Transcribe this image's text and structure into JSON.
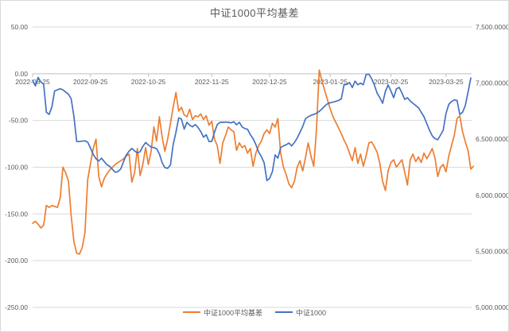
{
  "chart_data": {
    "type": "line",
    "title": "中证1000平均基差",
    "legend_position": "bottom",
    "grid": true,
    "n_points": 160,
    "x_tick_labels": [
      "2022-08-25",
      "2022-09-25",
      "2022-10-25",
      "2022-11-25",
      "2022-12-25",
      "2023-01-25",
      "2023-02-25",
      "2023-03-25"
    ],
    "x_tick_day_index": [
      0,
      21,
      42,
      65,
      86,
      108,
      130,
      150
    ],
    "left_axis": {
      "min": -250,
      "max": 50,
      "step": 50,
      "tick_values": [
        50,
        0,
        -50,
        -100,
        -150,
        -200,
        -250
      ],
      "tick_labels": [
        "50.00",
        "0.00",
        "-50.00",
        "-100.00",
        "-150.00",
        "-200.00",
        "-250.00"
      ]
    },
    "right_axis": {
      "min": 5000,
      "max": 7500,
      "step": 500,
      "tick_values": [
        7500,
        7000,
        6500,
        6000,
        5500,
        5000
      ],
      "tick_labels": [
        "7,500.0000",
        "7,000.0000",
        "6,500.0000",
        "6,000.0000",
        "5,500.0000",
        "5,000.0000"
      ]
    },
    "series": [
      {
        "name": "中证1000平均基差",
        "axis": "left",
        "color": "#ED7D31",
        "values": [
          -160,
          -158,
          -161,
          -165,
          -162,
          -141,
          -143,
          -141,
          -142,
          -143,
          -133,
          -100,
          -106,
          -115,
          -152,
          -180,
          -192,
          -193,
          -186,
          -170,
          -113,
          -96,
          -80,
          -70,
          -110,
          -121,
          -112,
          -107,
          -103,
          -100,
          -97,
          -95,
          -93,
          -91,
          -88,
          -86,
          -116,
          -106,
          -80,
          -109,
          -97,
          -79,
          -97,
          -83,
          -57,
          -72,
          -46,
          -68,
          -83,
          -70,
          -53,
          -36,
          -20,
          -40,
          -36,
          -44,
          -46,
          -38,
          -49,
          -45,
          -46,
          -43,
          -49,
          -45,
          -55,
          -51,
          -70,
          -77,
          -96,
          -74,
          -66,
          -57,
          -60,
          -62,
          -82,
          -74,
          -79,
          -77,
          -85,
          -80,
          -99,
          -85,
          -77,
          -72,
          -64,
          -60,
          -64,
          -53,
          -57,
          -48,
          -85,
          -100,
          -108,
          -118,
          -122,
          -115,
          -100,
          -93,
          -104,
          -90,
          -74,
          -88,
          -99,
          -60,
          4,
          -8,
          -18,
          -28,
          -38,
          -46,
          -52,
          -58,
          -64,
          -71,
          -77,
          -85,
          -93,
          -79,
          -96,
          -86,
          -99,
          -88,
          -74,
          -73,
          -78,
          -84,
          -96,
          -115,
          -125,
          -104,
          -95,
          -92,
          -100,
          -96,
          -92,
          -105,
          -119,
          -92,
          -86,
          -94,
          -89,
          -95,
          -85,
          -91,
          -86,
          -80,
          -90,
          -110,
          -100,
          -97,
          -105,
          -88,
          -77,
          -66,
          -48,
          -45,
          -62,
          -73,
          -82,
          -102,
          -99
        ]
      },
      {
        "name": "中证1000",
        "axis": "right",
        "color": "#4472C4",
        "values": [
          7025,
          6975,
          7050,
          7010,
          6990,
          6740,
          6720,
          6790,
          6930,
          6940,
          6950,
          6940,
          6920,
          6900,
          6860,
          6700,
          6480,
          6478,
          6483,
          6485,
          6473,
          6420,
          6365,
          6325,
          6305,
          6330,
          6300,
          6272,
          6257,
          6230,
          6205,
          6212,
          6235,
          6300,
          6360,
          6392,
          6417,
          6395,
          6377,
          6388,
          6435,
          6470,
          6448,
          6430,
          6425,
          6415,
          6368,
          6290,
          6246,
          6240,
          6270,
          6450,
          6560,
          6690,
          6680,
          6590,
          6650,
          6625,
          6610,
          6630,
          6605,
          6568,
          6518,
          6540,
          6478,
          6480,
          6562,
          6630,
          6650,
          6650,
          6652,
          6650,
          6645,
          6655,
          6628,
          6650,
          6610,
          6595,
          6588,
          6540,
          6505,
          6452,
          6385,
          6345,
          6290,
          6130,
          6150,
          6210,
          6360,
          6330,
          6425,
          6440,
          6450,
          6465,
          6440,
          6470,
          6510,
          6560,
          6612,
          6682,
          6700,
          6712,
          6722,
          6730,
          6748,
          6770,
          6795,
          6815,
          6825,
          6830,
          6837,
          6845,
          6860,
          6985,
          6988,
          7005,
          6960,
          7018,
          6985,
          7000,
          6985,
          7076,
          7080,
          7040,
          6983,
          6910,
          6870,
          6820,
          6926,
          6983,
          6930,
          6870,
          6948,
          6962,
          6912,
          6855,
          6870,
          6840,
          6820,
          6800,
          6780,
          6740,
          6700,
          6640,
          6580,
          6530,
          6505,
          6494,
          6537,
          6580,
          6730,
          6810,
          6835,
          6850,
          6845,
          6720,
          6740,
          6800,
          6920,
          7045
        ]
      }
    ]
  },
  "legend": {
    "items": [
      {
        "label": "中证1000平均基差",
        "color": "#ED7D31"
      },
      {
        "label": "中证1000",
        "color": "#4472C4"
      }
    ]
  },
  "style": {
    "gridline_color": "#D9D9D9",
    "axis_line_color": "#BFBFBF",
    "text_color": "#595959"
  }
}
